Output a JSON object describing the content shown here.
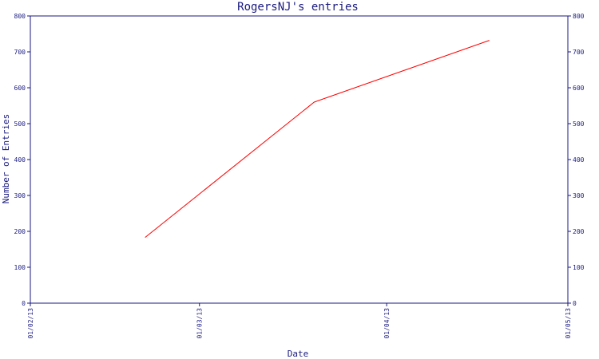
{
  "chart_data": {
    "type": "line",
    "title": "RogersNJ's entries",
    "xlabel": "Date",
    "ylabel": "Number of Entries",
    "x_ticks": [
      "01/02/13",
      "01/03/13",
      "01/04/13",
      "01/05/13"
    ],
    "ylim": [
      0,
      800
    ],
    "y_ticks": [
      0,
      100,
      200,
      300,
      400,
      500,
      600,
      700,
      800
    ],
    "series": [
      {
        "x": [
          "2013-02-20",
          "2013-03-20",
          "2013-04-18"
        ],
        "values": [
          183,
          560,
          732
        ],
        "color": "#ff0000"
      }
    ],
    "axis_color": "#1a1a80",
    "grid": false,
    "right_axis_mirrors_left": true
  }
}
